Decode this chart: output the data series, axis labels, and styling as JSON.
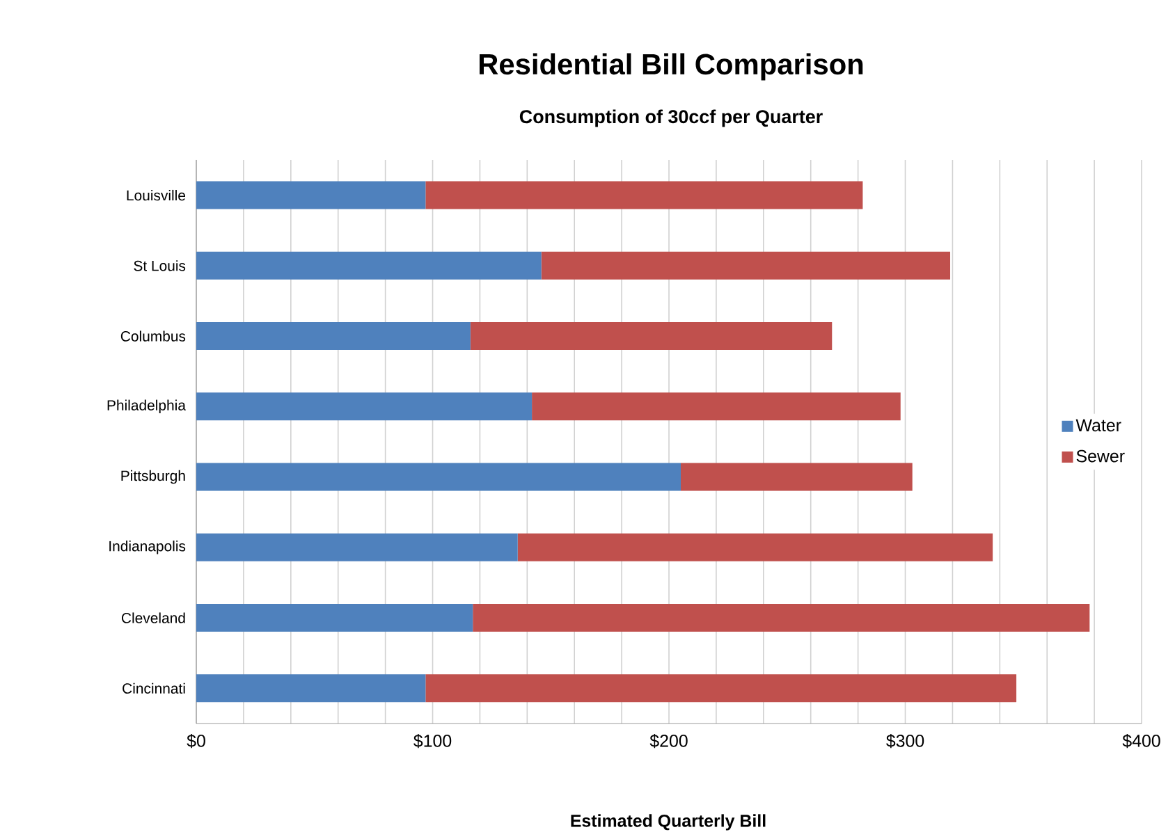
{
  "chart_data": {
    "type": "bar",
    "orientation": "horizontal",
    "stacked": true,
    "title": "Residential Bill Comparison",
    "subtitle": "Consumption of 30ccf per Quarter",
    "xlabel": "Estimated Quarterly Bill",
    "categories": [
      "Louisville",
      "St Louis",
      "Columbus",
      "Philadelphia",
      "Pittsburgh",
      "Indianapolis",
      "Cleveland",
      "Cincinnati"
    ],
    "series": [
      {
        "name": "Water",
        "color": "#4f81bd",
        "values": [
          97,
          146,
          116,
          142,
          205,
          136,
          117,
          97
        ]
      },
      {
        "name": "Sewer",
        "color": "#c0504d",
        "values": [
          185,
          173,
          153,
          156,
          98,
          201,
          261,
          250
        ]
      }
    ],
    "xlim": [
      0,
      400
    ],
    "xticks": [
      {
        "value": 0,
        "label": "$0"
      },
      {
        "value": 20,
        "label": null
      },
      {
        "value": 40,
        "label": null
      },
      {
        "value": 60,
        "label": null
      },
      {
        "value": 80,
        "label": null
      },
      {
        "value": 100,
        "label": "$100"
      },
      {
        "value": 120,
        "label": null
      },
      {
        "value": 140,
        "label": null
      },
      {
        "value": 160,
        "label": null
      },
      {
        "value": 180,
        "label": null
      },
      {
        "value": 200,
        "label": "$200"
      },
      {
        "value": 220,
        "label": null
      },
      {
        "value": 240,
        "label": null
      },
      {
        "value": 260,
        "label": null
      },
      {
        "value": 280,
        "label": null
      },
      {
        "value": 300,
        "label": "$300"
      },
      {
        "value": 320,
        "label": null
      },
      {
        "value": 340,
        "label": null
      },
      {
        "value": 360,
        "label": null
      },
      {
        "value": 380,
        "label": null
      },
      {
        "value": 400,
        "label": "$400"
      }
    ],
    "grid": "x",
    "legend": "right"
  }
}
